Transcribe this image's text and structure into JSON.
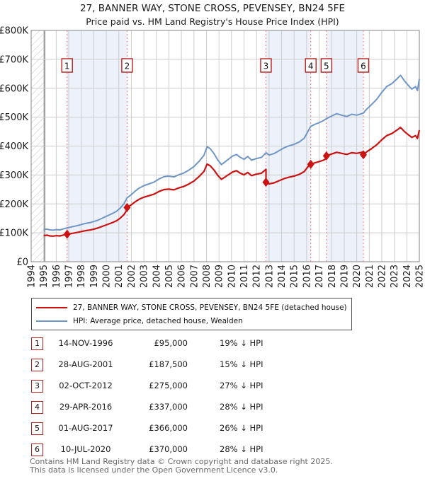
{
  "title": "27, BANNER WAY, STONE CROSS, PEVENSEY, BN24 5FE",
  "subtitle": "Price paid vs. HM Land Registry's House Price Index (HPI)",
  "legend": {
    "entries": [
      {
        "label": "27, BANNER WAY, STONE CROSS, PEVENSEY, BN24 5FE (detached house)",
        "color": "#cc1111"
      },
      {
        "label": "HPI: Average price, detached house, Wealden",
        "color": "#6f96c7"
      }
    ]
  },
  "chart_data": {
    "type": "line",
    "xlim": [
      1994,
      2025
    ],
    "ylim": [
      0,
      800000
    ],
    "y_tick_labels": [
      "£0",
      "£100K",
      "£200K",
      "£300K",
      "£400K",
      "£500K",
      "£600K",
      "£700K",
      "£800K"
    ],
    "x_tick_labels": [
      "1994",
      "1995",
      "1996",
      "1997",
      "1998",
      "1999",
      "2000",
      "2001",
      "2002",
      "2003",
      "2004",
      "2005",
      "2006",
      "2007",
      "2008",
      "2009",
      "2010",
      "2011",
      "2012",
      "2013",
      "2014",
      "2015",
      "2016",
      "2017",
      "2018",
      "2019",
      "2020",
      "2021",
      "2022",
      "2023",
      "2024",
      "2025"
    ],
    "grid": true,
    "hatch_region_end_year": 1995.08,
    "colors": {
      "property_line": "#cc1111",
      "hpi_line": "#6f96c7",
      "sale_guide": "#f08080",
      "band": "#edf1fa",
      "grid": "#cccccc",
      "border": "#9a9a9a",
      "hatch": "#c3c3c3",
      "hatch_edge": "#666666",
      "marker_box_border": "#b42020"
    },
    "series_hpi": {
      "name": "HPI: Average price, detached house, Wealden",
      "units": "GBP thousands",
      "points": [
        [
          1995.0,
          111
        ],
        [
          1995.25,
          113
        ],
        [
          1995.5,
          110
        ],
        [
          1995.75,
          109
        ],
        [
          1996.0,
          111
        ],
        [
          1996.3,
          110
        ],
        [
          1996.6,
          114
        ],
        [
          1996.87,
          117
        ],
        [
          1997.2,
          120
        ],
        [
          1997.5,
          123
        ],
        [
          1997.8,
          126
        ],
        [
          1998.1,
          130
        ],
        [
          1998.4,
          133
        ],
        [
          1998.7,
          135
        ],
        [
          1999.0,
          139
        ],
        [
          1999.3,
          143
        ],
        [
          1999.6,
          149
        ],
        [
          1999.9,
          155
        ],
        [
          2000.2,
          161
        ],
        [
          2000.5,
          167
        ],
        [
          2000.8,
          174
        ],
        [
          2001.1,
          185
        ],
        [
          2001.4,
          200
        ],
        [
          2001.66,
          221
        ],
        [
          2002.0,
          232
        ],
        [
          2002.3,
          244
        ],
        [
          2002.6,
          254
        ],
        [
          2003.0,
          263
        ],
        [
          2003.4,
          269
        ],
        [
          2003.8,
          275
        ],
        [
          2004.2,
          286
        ],
        [
          2004.6,
          294
        ],
        [
          2005.0,
          296
        ],
        [
          2005.4,
          293
        ],
        [
          2005.8,
          301
        ],
        [
          2006.2,
          307
        ],
        [
          2006.6,
          317
        ],
        [
          2007.0,
          329
        ],
        [
          2007.4,
          347
        ],
        [
          2007.8,
          368
        ],
        [
          2008.05,
          398
        ],
        [
          2008.3,
          391
        ],
        [
          2008.6,
          374
        ],
        [
          2008.9,
          352
        ],
        [
          2009.2,
          336
        ],
        [
          2009.5,
          346
        ],
        [
          2009.8,
          356
        ],
        [
          2010.1,
          366
        ],
        [
          2010.4,
          371
        ],
        [
          2010.7,
          361
        ],
        [
          2011.0,
          354
        ],
        [
          2011.3,
          364
        ],
        [
          2011.6,
          351
        ],
        [
          2012.0,
          357
        ],
        [
          2012.4,
          361
        ],
        [
          2012.75,
          377
        ],
        [
          2013.0,
          369
        ],
        [
          2013.4,
          374
        ],
        [
          2013.8,
          384
        ],
        [
          2014.2,
          394
        ],
        [
          2014.6,
          401
        ],
        [
          2015.0,
          406
        ],
        [
          2015.4,
          414
        ],
        [
          2015.8,
          427
        ],
        [
          2016.33,
          468
        ],
        [
          2016.7,
          476
        ],
        [
          2017.0,
          481
        ],
        [
          2017.3,
          487
        ],
        [
          2017.58,
          495
        ],
        [
          2018.0,
          504
        ],
        [
          2018.4,
          512
        ],
        [
          2018.8,
          507
        ],
        [
          2019.2,
          502
        ],
        [
          2019.6,
          510
        ],
        [
          2020.0,
          507
        ],
        [
          2020.53,
          514
        ],
        [
          2020.8,
          528
        ],
        [
          2021.2,
          544
        ],
        [
          2021.6,
          562
        ],
        [
          2022.0,
          586
        ],
        [
          2022.4,
          606
        ],
        [
          2022.8,
          616
        ],
        [
          2023.2,
          632
        ],
        [
          2023.5,
          645
        ],
        [
          2023.8,
          626
        ],
        [
          2024.1,
          611
        ],
        [
          2024.4,
          597
        ],
        [
          2024.7,
          606
        ],
        [
          2024.85,
          592
        ],
        [
          2025.0,
          632
        ]
      ]
    },
    "sales": [
      {
        "num": "1",
        "date": "14-NOV-1996",
        "year": 1996.87,
        "price_gbp": 95000,
        "price_label": "£95,000",
        "vs_hpi": "19% ↓ HPI"
      },
      {
        "num": "2",
        "date": "28-AUG-2001",
        "year": 2001.66,
        "price_gbp": 187500,
        "price_label": "£187,500",
        "vs_hpi": "15% ↓ HPI"
      },
      {
        "num": "3",
        "date": "02-OCT-2012",
        "year": 2012.75,
        "price_gbp": 275000,
        "price_label": "£275,000",
        "vs_hpi": "27% ↓ HPI"
      },
      {
        "num": "4",
        "date": "29-APR-2016",
        "year": 2016.33,
        "price_gbp": 337000,
        "price_label": "£337,000",
        "vs_hpi": "28% ↓ HPI"
      },
      {
        "num": "5",
        "date": "01-AUG-2017",
        "year": 2017.58,
        "price_gbp": 366000,
        "price_label": "£366,000",
        "vs_hpi": "26% ↓ HPI"
      },
      {
        "num": "6",
        "date": "10-JUL-2020",
        "year": 2020.53,
        "price_gbp": 370000,
        "price_label": "£370,000",
        "vs_hpi": "28% ↓ HPI"
      }
    ],
    "shaded_ownership_pairs": [
      [
        0,
        1
      ],
      [
        2,
        3
      ],
      [
        4,
        5
      ]
    ]
  },
  "footer": {
    "line1": "Contains HM Land Registry data © Crown copyright and database right 2025.",
    "line2": "This data is licensed under the Open Government Licence v3.0."
  }
}
